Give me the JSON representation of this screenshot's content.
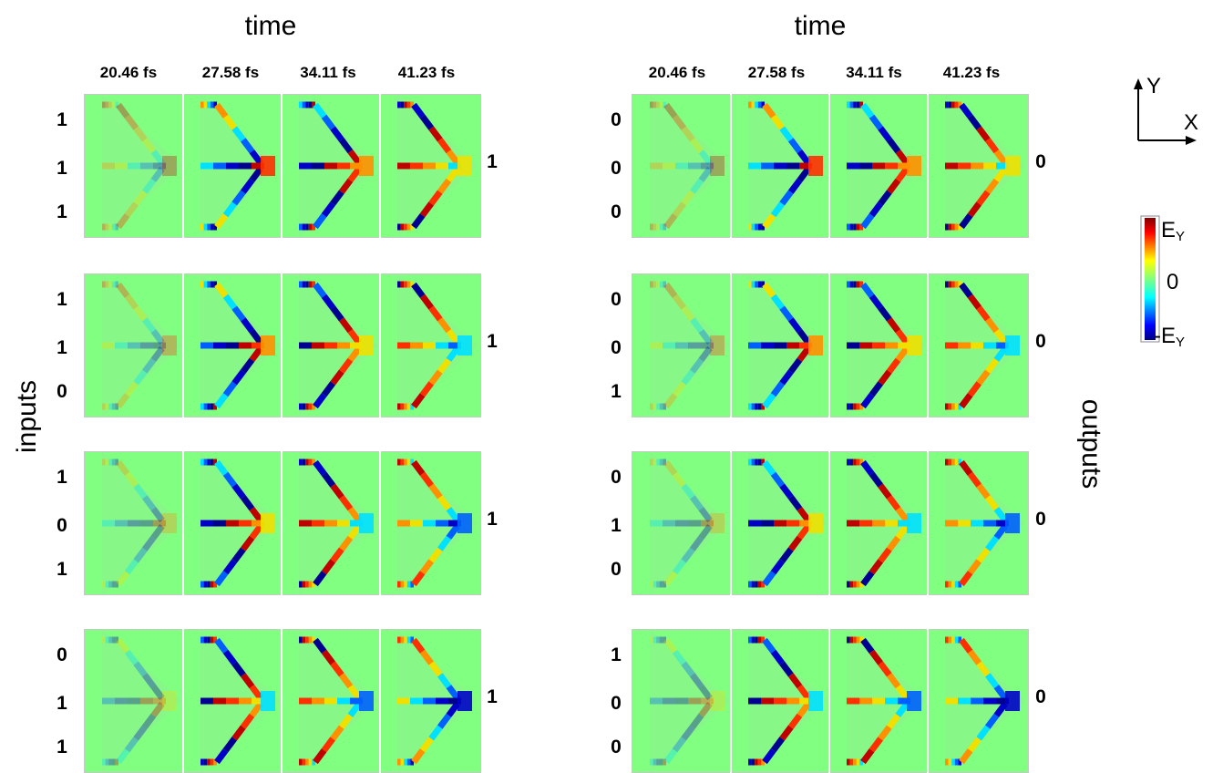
{
  "left_group": {
    "time_title": "time",
    "time_labels": [
      "20.46 fs",
      "27.58 fs",
      "34.11 fs",
      "41.23 fs"
    ],
    "side_label": "inputs",
    "rows": [
      {
        "inputs": [
          "1",
          "1",
          "1"
        ],
        "output": "1"
      },
      {
        "inputs": [
          "1",
          "1",
          "0"
        ],
        "output": "1"
      },
      {
        "inputs": [
          "1",
          "0",
          "1"
        ],
        "output": "1"
      },
      {
        "inputs": [
          "0",
          "1",
          "1"
        ],
        "output": "1"
      }
    ]
  },
  "right_group": {
    "time_title": "time",
    "time_labels": [
      "20.46 fs",
      "27.58 fs",
      "34.11 fs",
      "41.23 fs"
    ],
    "side_label": "outputs",
    "rows": [
      {
        "inputs": [
          "0",
          "0",
          "0"
        ],
        "output": "0"
      },
      {
        "inputs": [
          "0",
          "0",
          "1"
        ],
        "output": "0"
      },
      {
        "inputs": [
          "0",
          "1",
          "0"
        ],
        "output": "0"
      },
      {
        "inputs": [
          "1",
          "0",
          "0"
        ],
        "output": "0"
      }
    ]
  },
  "axes_indicator": {
    "y_label": "Y",
    "x_label": "X"
  },
  "colorbar": {
    "top_label": "E",
    "top_sub": "Y",
    "mid_label": "0",
    "bottom_label": "-E",
    "bottom_sub": "Y"
  },
  "colors": {
    "background_field": "#80ff80",
    "positive": "#c00000",
    "negative": "#0000c8",
    "frame_border": "#c8c8c8"
  }
}
